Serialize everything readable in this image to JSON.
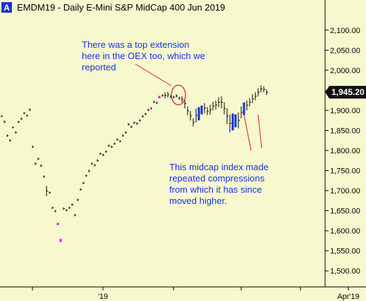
{
  "header": {
    "badge": "A",
    "title": "EMDM19 - Daily  E-Mini S&P MidCap 400 Jun 2019"
  },
  "price_label": "1,945.20",
  "annotations": {
    "top_note": [
      "There was a top extension",
      "here in the OEX too, which we",
      "reported"
    ],
    "bottom_note": [
      "This midcap index made",
      "repeated compressions",
      "from which it has since",
      "moved higher."
    ]
  },
  "chart_data": {
    "type": "bar",
    "style": "ohlc-price-bars",
    "title": "EMDM19 - Daily  E-Mini S&P MidCap 400 Jun 2019",
    "ylim": [
      1460,
      2175
    ],
    "y_ticks": [
      1500,
      1550,
      1600,
      1650,
      1700,
      1750,
      1800,
      1850,
      1900,
      1950,
      2000,
      2050,
      2100
    ],
    "y_tick_labels": [
      "1,500.00",
      "1,550.00",
      "1,600.00",
      "1,650.00",
      "1,700.00",
      "1,750.00",
      "1,800.00",
      "1,850.00",
      "1,900.00",
      "1,950.00",
      "2,000.00",
      "2,050.00",
      "2,100.00"
    ],
    "x_labels": [
      {
        "label": "'19",
        "bar": 36
      },
      {
        "label": "Apr'19",
        "bar": 123
      }
    ],
    "x_minor_ticks": [
      11,
      36,
      61,
      85,
      106,
      123
    ],
    "last_price": 1945.2,
    "colors": {
      "background": "#f8f8cf",
      "bar": "#000000",
      "compression": "#1030e0",
      "extension": "#e020e0",
      "annotation": "#1433e6",
      "pointer": "#d62020",
      "price_tag": "#111111"
    },
    "series": [
      {
        "values": [
          [
            1888,
            1883
          ],
          [
            1875,
            1868
          ],
          [
            1840,
            1834
          ],
          [
            1828,
            1822
          ],
          [
            1860,
            1855
          ],
          [
            1848,
            1842
          ],
          [
            1874,
            1868
          ],
          [
            1882,
            1876
          ],
          [
            1896,
            1890
          ],
          [
            1890,
            1884
          ],
          [
            1905,
            1898
          ],
          [
            1812,
            1806
          ],
          [
            1770,
            1764
          ],
          [
            1782,
            1776
          ],
          [
            1765,
            1759
          ],
          [
            1738,
            1732
          ],
          [
            1712,
            1686
          ],
          [
            1698,
            1692
          ],
          [
            1660,
            1654
          ],
          [
            1652,
            1646
          ],
          [
            1620,
            1614
          ],
          [
            1580,
            1572
          ],
          [
            1658,
            1652
          ],
          [
            1654,
            1648
          ],
          [
            1660,
            1654
          ],
          [
            1668,
            1662
          ],
          [
            1642,
            1636
          ],
          [
            1680,
            1674
          ],
          [
            1706,
            1700
          ],
          [
            1722,
            1716
          ],
          [
            1740,
            1734
          ],
          [
            1752,
            1746
          ],
          [
            1770,
            1764
          ],
          [
            1766,
            1760
          ],
          [
            1778,
            1772
          ],
          [
            1795,
            1789
          ],
          [
            1792,
            1786
          ],
          [
            1800,
            1794
          ],
          [
            1815,
            1809
          ],
          [
            1812,
            1806
          ],
          [
            1820,
            1814
          ],
          [
            1830,
            1824
          ],
          [
            1826,
            1820
          ],
          [
            1840,
            1834
          ],
          [
            1848,
            1842
          ],
          [
            1868,
            1862
          ],
          [
            1862,
            1856
          ],
          [
            1872,
            1866
          ],
          [
            1870,
            1864
          ],
          [
            1878,
            1872
          ],
          [
            1888,
            1882
          ],
          [
            1894,
            1888
          ],
          [
            1904,
            1898
          ],
          [
            1908,
            1902
          ],
          [
            1924,
            1918
          ],
          [
            1922,
            1916
          ],
          [
            1936,
            1930
          ],
          [
            1940,
            1934
          ],
          [
            1945,
            1930
          ],
          [
            1946,
            1932
          ],
          [
            1938,
            1930
          ],
          [
            1936,
            1930
          ],
          [
            1940,
            1932
          ],
          [
            1934,
            1926
          ],
          [
            1935,
            1920
          ],
          [
            1928,
            1905
          ],
          [
            1910,
            1888
          ],
          [
            1898,
            1875
          ],
          [
            1880,
            1860
          ],
          [
            1905,
            1870
          ],
          [
            1908,
            1875
          ],
          [
            1912,
            1890
          ],
          [
            1918,
            1893
          ],
          [
            1908,
            1888
          ],
          [
            1914,
            1889
          ],
          [
            1922,
            1900
          ],
          [
            1925,
            1902
          ],
          [
            1932,
            1908
          ],
          [
            1935,
            1905
          ],
          [
            1920,
            1890
          ],
          [
            1905,
            1866
          ],
          [
            1890,
            1845
          ],
          [
            1892,
            1850
          ],
          [
            1890,
            1858
          ],
          [
            1895,
            1855
          ],
          [
            1910,
            1880
          ],
          [
            1920,
            1888
          ],
          [
            1925,
            1900
          ],
          [
            1930,
            1910
          ],
          [
            1940,
            1918
          ],
          [
            1945,
            1925
          ],
          [
            1955,
            1935
          ],
          [
            1962,
            1945
          ],
          [
            1960,
            1945
          ],
          [
            1952,
            1938
          ]
        ]
      }
    ],
    "compression_bars_blue": [
      70,
      71,
      82,
      83,
      86
    ],
    "extension_bars_magenta": [
      20,
      21,
      56
    ]
  }
}
